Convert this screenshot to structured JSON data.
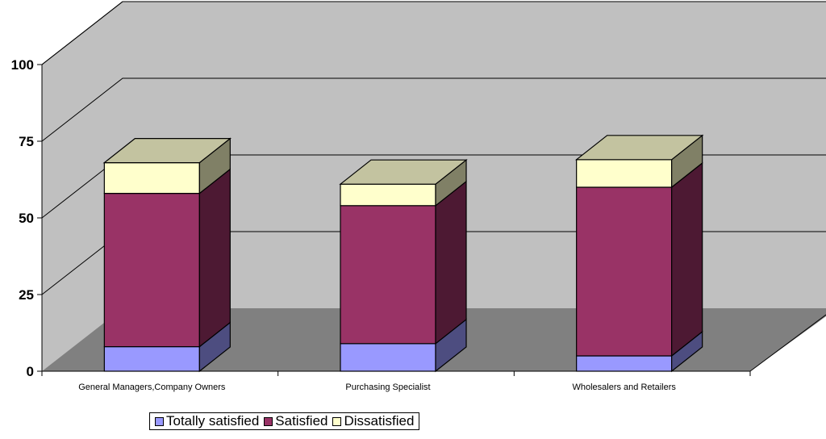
{
  "chart_data": {
    "type": "bar",
    "stacked": true,
    "three_d": true,
    "categories": [
      "General Managers,Company Owners",
      "Purchasing Specialist",
      "Wholesalers and Retailers"
    ],
    "series": [
      {
        "name": "Totally satisfied",
        "values": [
          8,
          9,
          5
        ],
        "color": "#9999ff",
        "side_color": "#4d4d80",
        "top_color": "#ccccff"
      },
      {
        "name": "Satisfied",
        "values": [
          50,
          45,
          55
        ],
        "color": "#993366",
        "side_color": "#4d1933",
        "top_color": "#cc99b3"
      },
      {
        "name": "Dissatisfied",
        "values": [
          10,
          7,
          9
        ],
        "color": "#ffffcc",
        "side_color": "#808066",
        "top_color": "#c3c3a0"
      }
    ],
    "y_ticks": [
      "0",
      "25",
      "50",
      "75",
      "100"
    ],
    "ylim": [
      0,
      100
    ],
    "grid": true,
    "legend": "bottom",
    "colors": {
      "wall": "#c0c0c0",
      "floor": "#808080",
      "gridline": "#000000"
    }
  }
}
